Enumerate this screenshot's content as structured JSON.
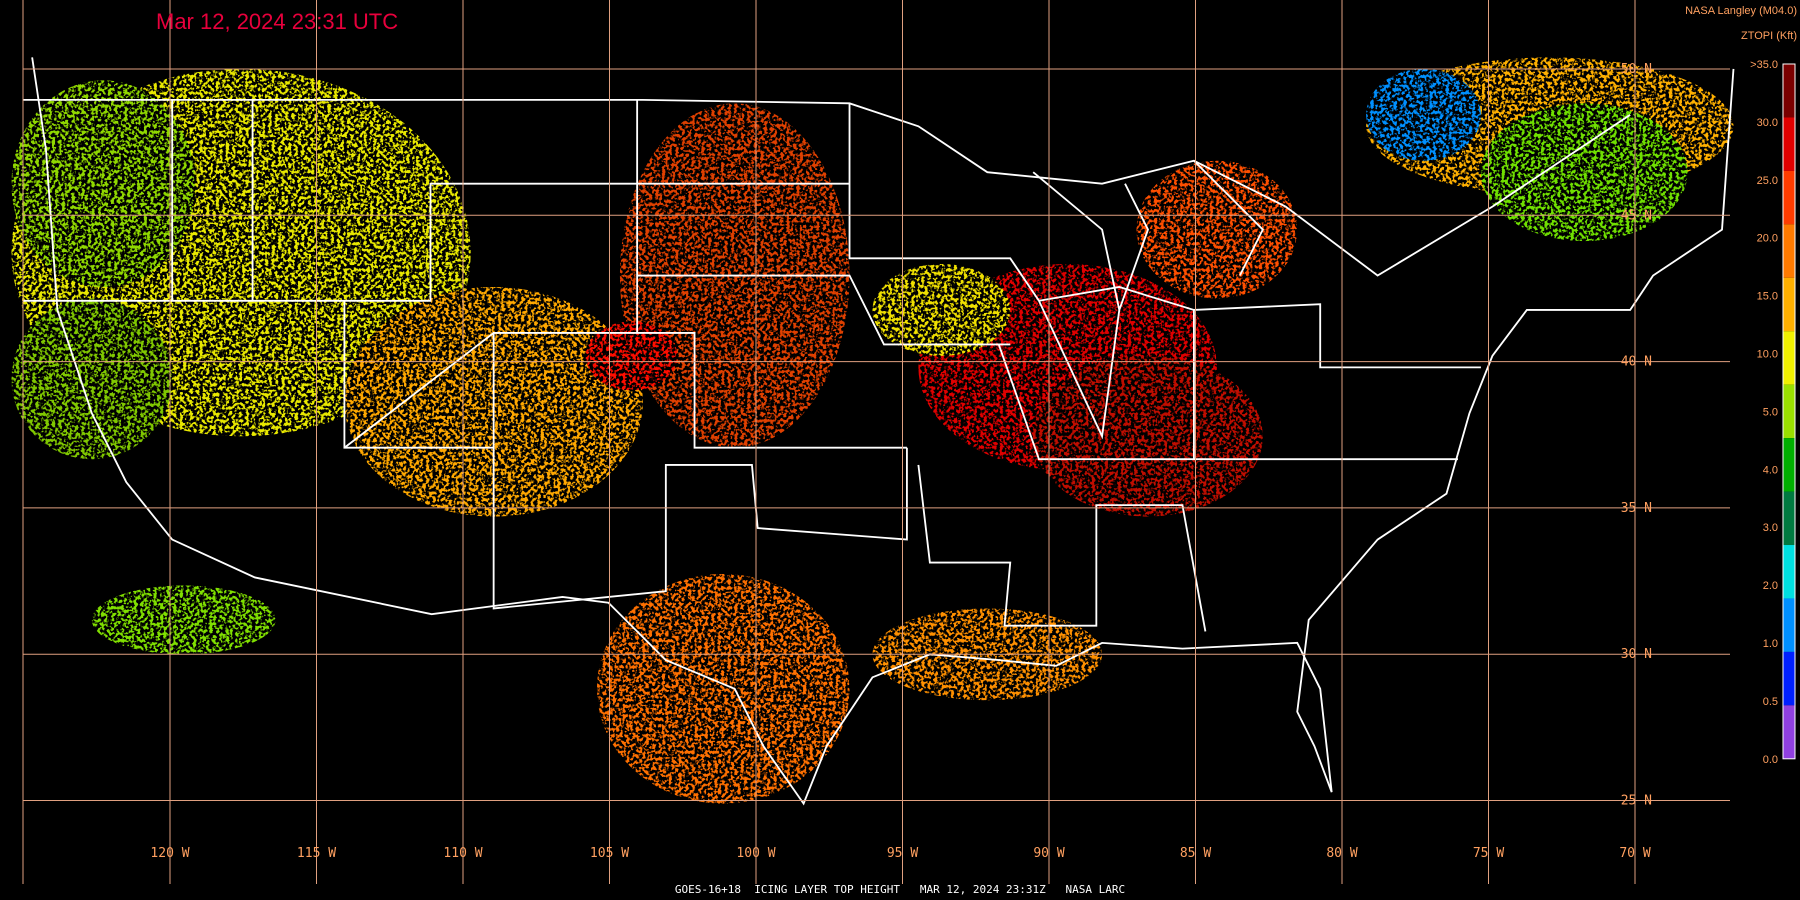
{
  "header": {
    "timestamp": "Mar 12, 2024 23:31 UTC",
    "source": "NASA Langley (M04.0)"
  },
  "legend": {
    "title": "ZTOPI (Kft)",
    "labels": [
      ">35.0",
      "30.0",
      "25.0",
      "20.0",
      "15.0",
      "10.0",
      "5.0",
      "4.0",
      "3.0",
      "2.0",
      "1.0",
      "0.5",
      "0.0"
    ],
    "colors": [
      "#7a0000",
      "#e00000",
      "#ff3c00",
      "#ff7a00",
      "#ffb000",
      "#f0f000",
      "#9ae000",
      "#00b000",
      "#007a40",
      "#00e0e0",
      "#0090ff",
      "#0020ff",
      "#9040e0"
    ]
  },
  "grid": {
    "latitude_labels": [
      "50 N",
      "45 N",
      "40 N",
      "35 N",
      "30 N",
      "25 N"
    ],
    "longitude_labels": [
      "120 W",
      "115 W",
      "110 W",
      "105 W",
      "100 W",
      "95 W",
      "90 W",
      "85 W",
      "80 W",
      "75 W",
      "70 W"
    ]
  },
  "footer": "GOES-16+18  ICING LAYER TOP HEIGHT   MAR 12, 2024 23:31Z   NASA LARC"
}
